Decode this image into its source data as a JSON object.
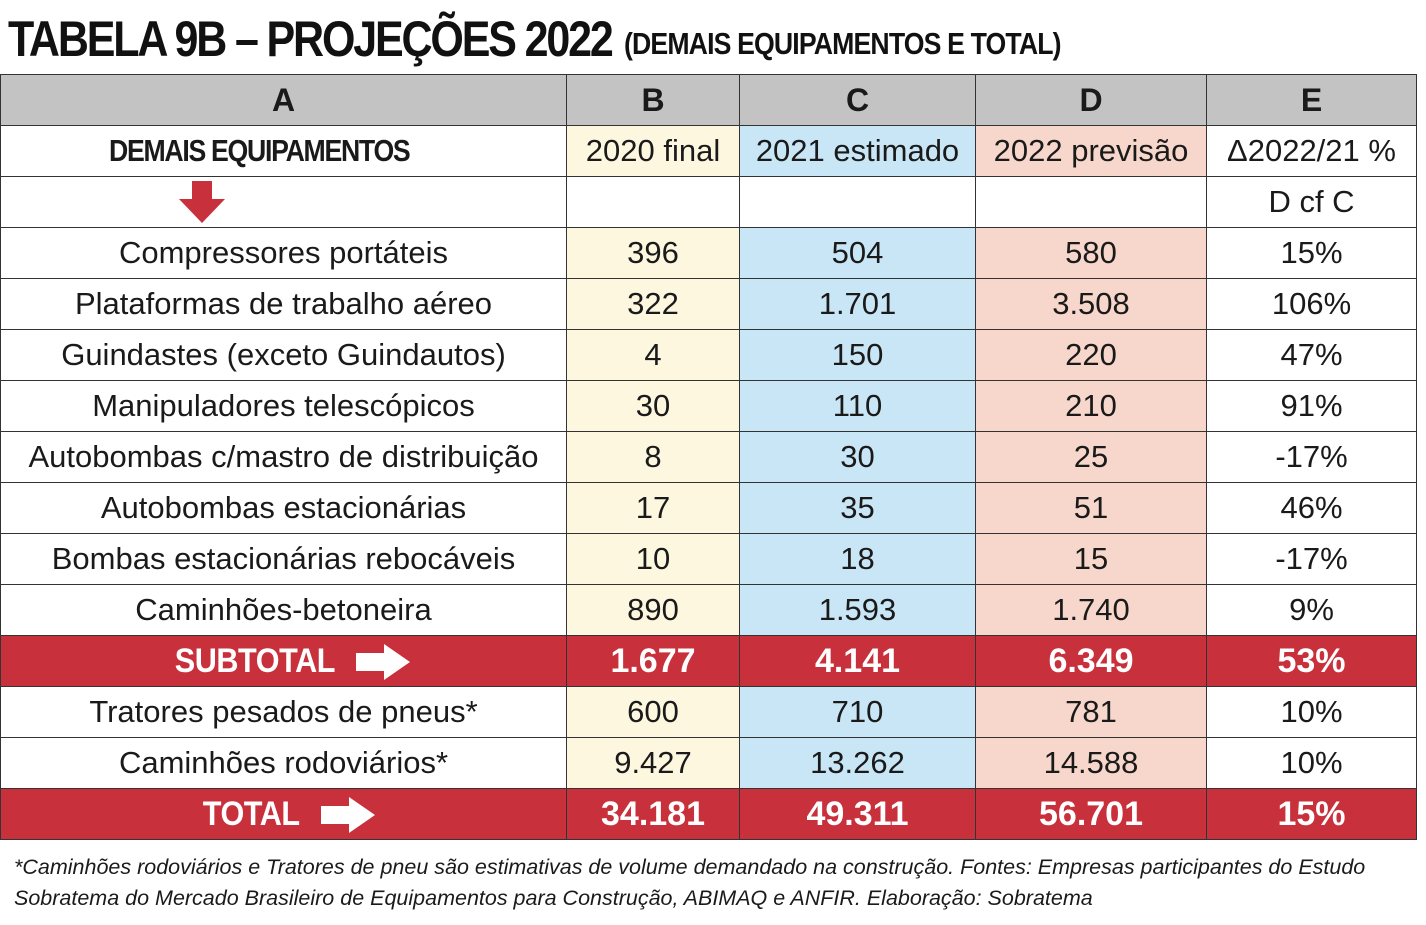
{
  "title": {
    "main": "TABELA 9B – PROJEÇÕES 2022",
    "sub": "(DEMAIS EQUIPAMENTOS E TOTAL)"
  },
  "column_letters": [
    "A",
    "B",
    "C",
    "D",
    "E"
  ],
  "section": {
    "title": "DEMAIS EQUIPAMENTOS",
    "col_b": "2020 final",
    "col_c": "2021 estimado",
    "col_d": "2022 previsão",
    "col_e": "Δ2022/21 %",
    "note_e": "D cf C"
  },
  "rows": [
    {
      "label": "Compressores portáteis",
      "b": "396",
      "c": "504",
      "d": "580",
      "e": "15%"
    },
    {
      "label": "Plataformas de trabalho aéreo",
      "b": "322",
      "c": "1.701",
      "d": "3.508",
      "e": "106%"
    },
    {
      "label": "Guindastes (exceto Guindautos)",
      "b": "4",
      "c": "150",
      "d": "220",
      "e": "47%"
    },
    {
      "label": "Manipuladores telescópicos",
      "b": "30",
      "c": "110",
      "d": "210",
      "e": "91%"
    },
    {
      "label": "Autobombas c/mastro de distribuição",
      "b": "8",
      "c": "30",
      "d": "25",
      "e": "-17%"
    },
    {
      "label": "Autobombas estacionárias",
      "b": "17",
      "c": "35",
      "d": "51",
      "e": "46%"
    },
    {
      "label": "Bombas estacionárias rebocáveis",
      "b": "10",
      "c": "18",
      "d": "15",
      "e": "-17%"
    },
    {
      "label": "Caminhões-betoneira",
      "b": "890",
      "c": "1.593",
      "d": "1.740",
      "e": "9%"
    }
  ],
  "subtotal": {
    "label": "SUBTOTAL",
    "b": "1.677",
    "c": "4.141",
    "d": "6.349",
    "e": "53%"
  },
  "extra_rows": [
    {
      "label": "Tratores pesados de pneus*",
      "b": "600",
      "c": "710",
      "d": "781",
      "e": "10%"
    },
    {
      "label": "Caminhões rodoviários*",
      "b": "9.427",
      "c": "13.262",
      "d": "14.588",
      "e": "10%"
    }
  ],
  "total": {
    "label": "TOTAL",
    "b": "34.181",
    "c": "49.311",
    "d": "56.701",
    "e": "15%"
  },
  "footnote": "*Caminhões rodoviários e Tratores de pneu são estimativas de volume demandado na construção. Fontes: Empresas participantes do Estudo Sobratema do Mercado Brasileiro de Equipamentos para Construção, ABIMAQ e ANFIR. Elaboração: Sobratema",
  "colors": {
    "accent_red": "#c8303b",
    "col_b": "#fdf7e0",
    "col_c": "#c9e6f6",
    "col_d": "#f7d7cb",
    "header_gray": "#c3c3c3"
  },
  "icons": {
    "down": "red-down-arrow-icon",
    "right": "white-right-arrow-icon"
  }
}
